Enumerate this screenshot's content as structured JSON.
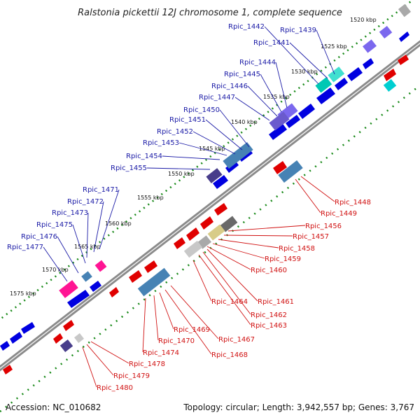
{
  "title": "Ralstonia pickettii 12J chromosome 1, complete sequence",
  "footer": {
    "accession": "Accession: NC_010682",
    "summary": "Topology: circular; Length: 3,942,557 bp; Genes: 3,767"
  },
  "ticks": [
    "1520 kbp",
    "1525 kbp",
    "1530 kbp",
    "1535 kbp",
    "1540 kbp",
    "1545 kbp",
    "1550 kbp",
    "1555 kbp",
    "1560 kbp",
    "1565 kbp",
    "1570 kbp",
    "1575 kbp"
  ],
  "forward_genes": [
    "Rpic_1439",
    "Rpic_1441",
    "Rpic_1442",
    "Rpic_1444",
    "Rpic_1445",
    "Rpic_1446",
    "Rpic_1447",
    "Rpic_1450",
    "Rpic_1451",
    "Rpic_1452",
    "Rpic_1453",
    "Rpic_1454",
    "Rpic_1455",
    "Rpic_1471",
    "Rpic_1472",
    "Rpic_1473",
    "Rpic_1475",
    "Rpic_1476",
    "Rpic_1477"
  ],
  "reverse_genes": [
    "Rpic_1448",
    "Rpic_1449",
    "Rpic_1456",
    "Rpic_1457",
    "Rpic_1458",
    "Rpic_1459",
    "Rpic_1460",
    "Rpic_1461",
    "Rpic_1462",
    "Rpic_1463",
    "Rpic_1464",
    "Rpic_1467",
    "Rpic_1468",
    "Rpic_1469",
    "Rpic_1470",
    "Rpic_1474",
    "Rpic_1478",
    "Rpic_1479",
    "Rpic_1480"
  ],
  "colors": {
    "backbone": "#808080",
    "forward_gene": "#0000e0",
    "reverse_gene": "#e00000",
    "label_forward": "#1a1aa6",
    "label_reverse": "#d01010",
    "tick_dot": "#1a8a1a",
    "cog_blue": "#4682b4",
    "cog_purple": "#7b68ee",
    "cog_pink": "#ff1493",
    "cog_teal": "#00ced1",
    "cog_grey": "#a9a9a9",
    "cog_khaki": "#d8cc88"
  }
}
